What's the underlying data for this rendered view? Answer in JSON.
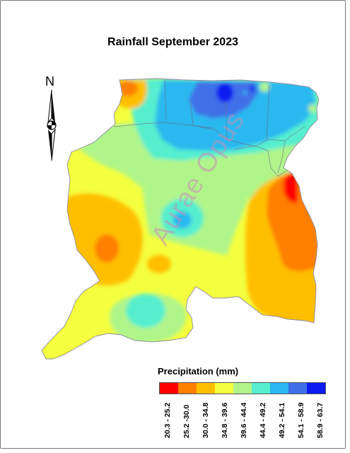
{
  "title": "Rainfall September 2023",
  "north_arrow": {
    "letter": "N"
  },
  "watermark": "Aurae Opus",
  "legend": {
    "title": "Precipitation (mm)",
    "classes": [
      {
        "label": "20.3 - 25.2",
        "color": "#ff0000"
      },
      {
        "label": "25.2 -30.0",
        "color": "#ff7f00"
      },
      {
        "label": "30.0 - 34.8",
        "color": "#ffbf00"
      },
      {
        "label": "34.8 - 39.6",
        "color": "#f4ff3f"
      },
      {
        "label": "39.6 - 44.4",
        "color": "#b0f58a"
      },
      {
        "label": "44.4 - 49.2",
        "color": "#55efcf"
      },
      {
        "label": "49.2 - 54.1",
        "color": "#29b8f0"
      },
      {
        "label": "54.1 - 58.9",
        "color": "#3f6fe8"
      },
      {
        "label": "58.9 - 63.7",
        "color": "#0a1cf0"
      }
    ]
  }
}
